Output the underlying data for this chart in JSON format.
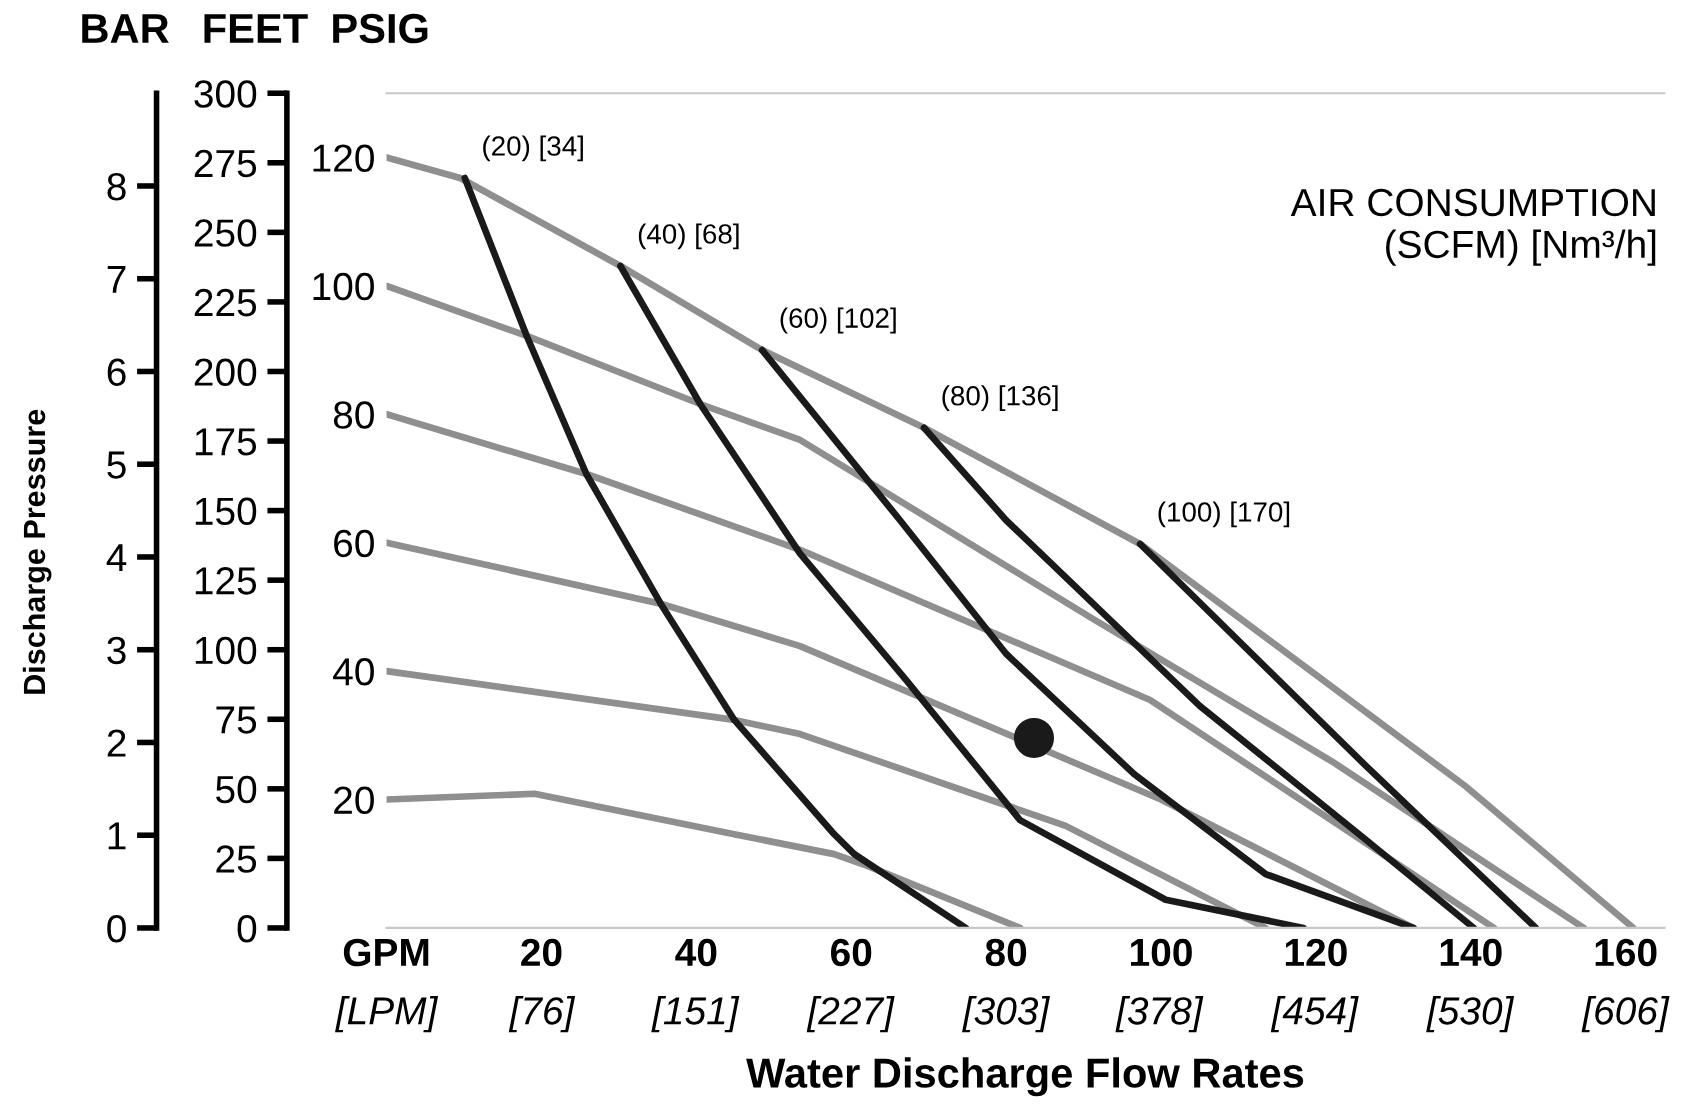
{
  "chart_data": {
    "type": "line",
    "xlabel": "Water Discharge Flow Rates",
    "ylabel": "PSIG",
    "y2label": "FEET",
    "y3label": "BAR",
    "annotations": [
      "Discharge Pressure",
      "AIR CONSUMPTION\n(SCFM) [Nm³/h]"
    ],
    "xlim": [
      0,
      165
    ],
    "xticks": [
      {
        "value": 0,
        "label": "GPM"
      },
      20,
      40,
      60,
      80,
      100,
      120,
      140,
      160
    ],
    "x2lim": [
      0,
      625
    ],
    "x2ticks": [
      {
        "value": 0,
        "label": "[LPM]"
      },
      {
        "value": 76,
        "label": "[76]"
      },
      {
        "value": 151,
        "label": "[151]"
      },
      {
        "value": 227,
        "label": "[227]"
      },
      {
        "value": 303,
        "label": "[303]"
      },
      {
        "value": 378,
        "label": "[378]"
      },
      {
        "value": 454,
        "label": "[454]"
      },
      {
        "value": 530,
        "label": "[530]"
      },
      {
        "value": 606,
        "label": "[606]"
      }
    ],
    "ylim": [
      0,
      130
    ],
    "yticks": [
      20,
      40,
      60,
      80,
      100,
      120
    ],
    "y2lim": [
      0,
      300
    ],
    "y2ticks": [
      0,
      25,
      50,
      75,
      100,
      125,
      150,
      175,
      200,
      225,
      250,
      275,
      300
    ],
    "y3lim": [
      0,
      9
    ],
    "y3ticks": [
      0,
      1,
      2,
      3,
      4,
      5,
      6,
      7,
      8
    ],
    "marker": "none",
    "line_style": "solid",
    "grid": false,
    "legend": false,
    "series": [
      {
        "color": "#8f8f8f",
        "x": [
          0,
          9.5,
          30.2,
          48.5,
          69.4,
          97.3,
          139.4,
          161
        ],
        "values": [
          120,
          116.8,
          103.1,
          90,
          77.9,
          59.8,
          22,
          0
        ]
      },
      {
        "color": "#8f8f8f",
        "x": [
          0,
          18.1,
          40.5,
          53.4,
          91.4,
          122,
          154.6
        ],
        "values": [
          100,
          92.2,
          81.6,
          76,
          48,
          26,
          0
        ]
      },
      {
        "color": "#8f8f8f",
        "x": [
          0,
          25.8,
          53.4,
          98.6,
          143
        ],
        "values": [
          80,
          70.7,
          58.9,
          35.5,
          0
        ]
      },
      {
        "color": "#8f8f8f",
        "x": [
          0,
          35.4,
          53.4,
          100,
          132.6
        ],
        "values": [
          60,
          50.5,
          43.9,
          20,
          0
        ]
      },
      {
        "color": "#8f8f8f",
        "x": [
          0,
          44.9,
          53.4,
          87.7,
          113.5
        ],
        "values": [
          40,
          32.4,
          30.2,
          15.9,
          0
        ]
      },
      {
        "color": "#8f8f8f",
        "x": [
          0,
          19.1,
          44.9,
          57.8,
          62,
          81.8
        ],
        "values": [
          20,
          20.9,
          14.6,
          11.5,
          9.7,
          0
        ]
      },
      {
        "name": "(20) [34]",
        "color": "#1a1a1a",
        "x": [
          10.1,
          18.1,
          25.8,
          35.4,
          44.9,
          57.8,
          60.4,
          74.8
        ],
        "values": [
          116.8,
          92.2,
          70.7,
          50.5,
          32.4,
          14.6,
          11.5,
          0
        ]
      },
      {
        "name": "(40) [68]",
        "color": "#1a1a1a",
        "x": [
          30.2,
          40.5,
          53.4,
          67.1,
          81.8,
          100.6,
          118.4
        ],
        "values": [
          103.1,
          81.6,
          58.3,
          38.6,
          16.8,
          4.4,
          0
        ]
      },
      {
        "name": "(60) [102]",
        "color": "#1a1a1a",
        "x": [
          48.5,
          66.3,
          80,
          96.5,
          113.5,
          132.6
        ],
        "values": [
          90,
          63.5,
          42.7,
          24,
          8.4,
          0
        ]
      },
      {
        "name": "(80) [136]",
        "color": "#1a1a1a",
        "x": [
          69.4,
          80,
          105,
          126.5,
          140.4
        ],
        "values": [
          77.9,
          63.5,
          34.6,
          13.7,
          0
        ]
      },
      {
        "name": "(100) [170]",
        "color": "#1a1a1a",
        "x": [
          97.3,
          126.5,
          148.4
        ],
        "values": [
          59.8,
          25.2,
          0
        ]
      },
      {
        "type": "scatter",
        "marker": "circle",
        "color": "#1a1a1a",
        "x": [
          83.6
        ],
        "values": [
          29.6
        ]
      }
    ]
  }
}
